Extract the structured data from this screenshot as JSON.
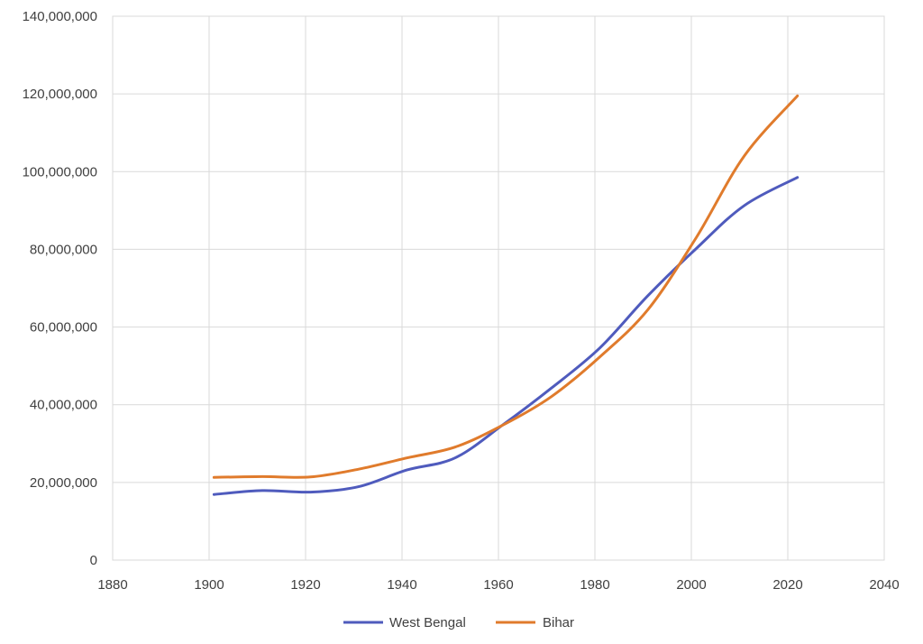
{
  "chart_data": {
    "type": "line",
    "x": [
      1901,
      1911,
      1921,
      1931,
      1941,
      1951,
      1961,
      1971,
      1981,
      1991,
      2001,
      2011,
      2022
    ],
    "series": [
      {
        "name": "West Bengal",
        "color": "#4f5bbd",
        "values": [
          16900000,
          17900000,
          17500000,
          18900000,
          23200000,
          26300000,
          34900000,
          44300000,
          54600000,
          68100000,
          80200000,
          91300000,
          98500000
        ]
      },
      {
        "name": "Bihar",
        "color": "#e07b2c",
        "values": [
          21300000,
          21500000,
          21400000,
          23400000,
          26300000,
          29100000,
          34800000,
          42100000,
          52300000,
          64500000,
          83000000,
          104100000,
          119500000
        ]
      }
    ],
    "xlim": [
      1880,
      2040
    ],
    "ylim": [
      0,
      140000000
    ],
    "x_ticks": [
      "1880",
      "1900",
      "1920",
      "1940",
      "1960",
      "1980",
      "2000",
      "2020",
      "2040"
    ],
    "y_ticks": [
      "0",
      "20,000,000",
      "40,000,000",
      "60,000,000",
      "80,000,000",
      "100,000,000",
      "120,000,000",
      "140,000,000"
    ],
    "grid": true,
    "legend_position": "bottom",
    "title": "",
    "xlabel": "",
    "ylabel": ""
  }
}
